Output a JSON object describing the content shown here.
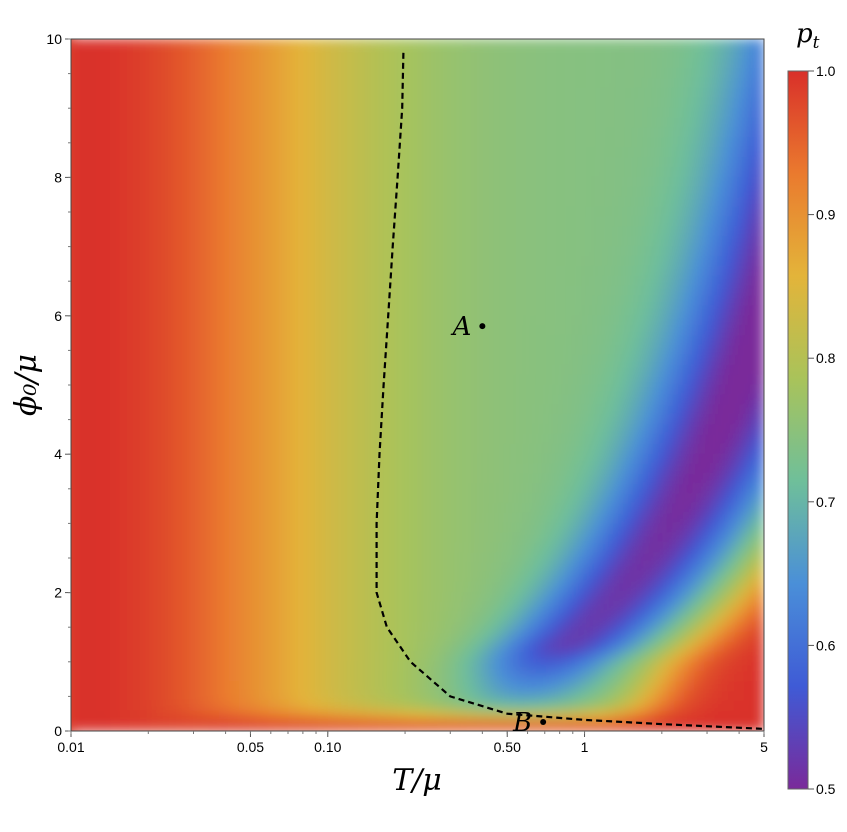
{
  "chart_data": {
    "type": "heatmap",
    "xlabel": "T/μ",
    "ylabel": "ϕ₀/μ",
    "x_scale": "log",
    "xlim": [
      0.01,
      5
    ],
    "ylim": [
      0,
      10
    ],
    "x_ticks": [
      {
        "value": 0.01,
        "label": "0.01"
      },
      {
        "value": 0.05,
        "label": "0.05"
      },
      {
        "value": 0.1,
        "label": "0.10"
      },
      {
        "value": 0.5,
        "label": "0.50"
      },
      {
        "value": 1,
        "label": "1"
      },
      {
        "value": 5,
        "label": "5"
      }
    ],
    "y_ticks": [
      {
        "value": 0,
        "label": "0"
      },
      {
        "value": 2,
        "label": "2"
      },
      {
        "value": 4,
        "label": "4"
      },
      {
        "value": 6,
        "label": "6"
      },
      {
        "value": 8,
        "label": "8"
      },
      {
        "value": 10,
        "label": "10"
      }
    ],
    "colorbar": {
      "title": "p_t",
      "range": [
        0.5,
        1.0
      ],
      "ticks": [
        {
          "value": 0.5,
          "label": "0.5"
        },
        {
          "value": 0.6,
          "label": "0.6"
        },
        {
          "value": 0.7,
          "label": "0.7"
        },
        {
          "value": 0.8,
          "label": "0.8"
        },
        {
          "value": 0.9,
          "label": "0.9"
        },
        {
          "value": 1.0,
          "label": "1.0"
        }
      ],
      "colors": [
        "#7a2a9a",
        "#3f5bd6",
        "#4a8fd8",
        "#6fbf9a",
        "#a9c35a",
        "#e3b43a",
        "#ea7a2e",
        "#d9302a"
      ]
    },
    "boundary_curve": {
      "style": "dashed",
      "color": "#000000",
      "points": [
        {
          "x": 0.197,
          "y": 9.8
        },
        {
          "x": 0.195,
          "y": 9.0
        },
        {
          "x": 0.187,
          "y": 8.0
        },
        {
          "x": 0.179,
          "y": 7.0
        },
        {
          "x": 0.172,
          "y": 6.0
        },
        {
          "x": 0.165,
          "y": 5.0
        },
        {
          "x": 0.159,
          "y": 4.0
        },
        {
          "x": 0.155,
          "y": 3.0
        },
        {
          "x": 0.155,
          "y": 2.0
        },
        {
          "x": 0.17,
          "y": 1.5
        },
        {
          "x": 0.21,
          "y": 1.0
        },
        {
          "x": 0.3,
          "y": 0.5
        },
        {
          "x": 0.5,
          "y": 0.25
        },
        {
          "x": 1.0,
          "y": 0.16
        },
        {
          "x": 2.0,
          "y": 0.1
        },
        {
          "x": 5.0,
          "y": 0.03
        }
      ]
    },
    "annotations": [
      {
        "label": "A",
        "x": 0.4,
        "y": 5.85
      },
      {
        "label": "B",
        "x": 0.69,
        "y": 0.13
      }
    ]
  }
}
